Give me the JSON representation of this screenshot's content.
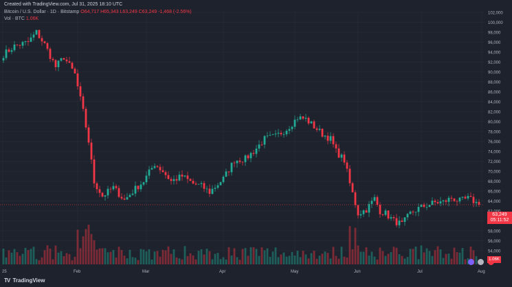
{
  "header": {
    "line1": "Created with TradingView.com, Jul 31, 2025 18:10 UTC",
    "symbol": "Bitcoin / U.S. Dollar · 1D · Bitstamp",
    "ohlc": "O64,717 H65,343 L63,249 C63,249 -1,468 (-2.56%)",
    "volume_label": "Vol · BTC",
    "volume_value": "1.06K"
  },
  "price_tag": {
    "price": "63,249",
    "countdown": "05:11:52"
  },
  "volume_tag": "1.06K",
  "logo": "TradingView",
  "colors": {
    "up": "#22ab94",
    "down": "#f23645",
    "background": "#1e222d",
    "grid": "#2a2e39"
  },
  "chart_data": {
    "type": "candlestick",
    "y_ticks": [
      "102,000",
      "100,000",
      "98,000",
      "96,000",
      "94,000",
      "92,000",
      "90,000",
      "88,000",
      "86,000",
      "84,000",
      "82,000",
      "80,000",
      "78,000",
      "76,000",
      "74,000",
      "72,000",
      "70,000",
      "68,000",
      "66,000",
      "64,000",
      "62,000",
      "60,000",
      "58,000",
      "56,000",
      "54,000"
    ],
    "x_ticks": [
      "25",
      "Feb",
      "Mar",
      "Apr",
      "May",
      "Jun",
      "Jul",
      "Aug"
    ],
    "y_range": [
      54000,
      102000
    ],
    "close_line": 63249,
    "anchors": [
      [
        0,
        93500
      ],
      [
        4,
        95200
      ],
      [
        9,
        96000
      ],
      [
        12,
        98000
      ],
      [
        15,
        95500
      ],
      [
        19,
        91000
      ],
      [
        22,
        93000
      ],
      [
        26,
        89500
      ],
      [
        29,
        82000
      ],
      [
        31,
        76000
      ],
      [
        33,
        67800
      ],
      [
        36,
        65000
      ],
      [
        40,
        66700
      ],
      [
        44,
        64200
      ],
      [
        48,
        66500
      ],
      [
        51,
        68000
      ],
      [
        55,
        71500
      ],
      [
        58,
        70000
      ],
      [
        61,
        68000
      ],
      [
        65,
        69000
      ],
      [
        69,
        67500
      ],
      [
        72,
        67000
      ],
      [
        75,
        65800
      ],
      [
        80,
        68500
      ],
      [
        84,
        72200
      ],
      [
        88,
        72500
      ],
      [
        91,
        74000
      ],
      [
        95,
        76500
      ],
      [
        99,
        77000
      ],
      [
        103,
        78500
      ],
      [
        107,
        80800
      ],
      [
        110,
        80500
      ],
      [
        113,
        79000
      ],
      [
        116,
        77500
      ],
      [
        119,
        76500
      ],
      [
        121,
        74000
      ],
      [
        124,
        72200
      ],
      [
        126,
        67500
      ],
      [
        129,
        61500
      ],
      [
        132,
        62300
      ],
      [
        135,
        64500
      ],
      [
        137,
        62000
      ],
      [
        139,
        61500
      ],
      [
        142,
        60000
      ],
      [
        145,
        59300
      ],
      [
        148,
        61500
      ],
      [
        151,
        62500
      ],
      [
        154,
        63200
      ],
      [
        157,
        63700
      ],
      [
        160,
        63800
      ],
      [
        163,
        64600
      ],
      [
        166,
        64000
      ],
      [
        169,
        64500
      ],
      [
        171,
        64000
      ],
      [
        173,
        63249
      ]
    ],
    "n_candles": 174,
    "volume_max": 100
  }
}
